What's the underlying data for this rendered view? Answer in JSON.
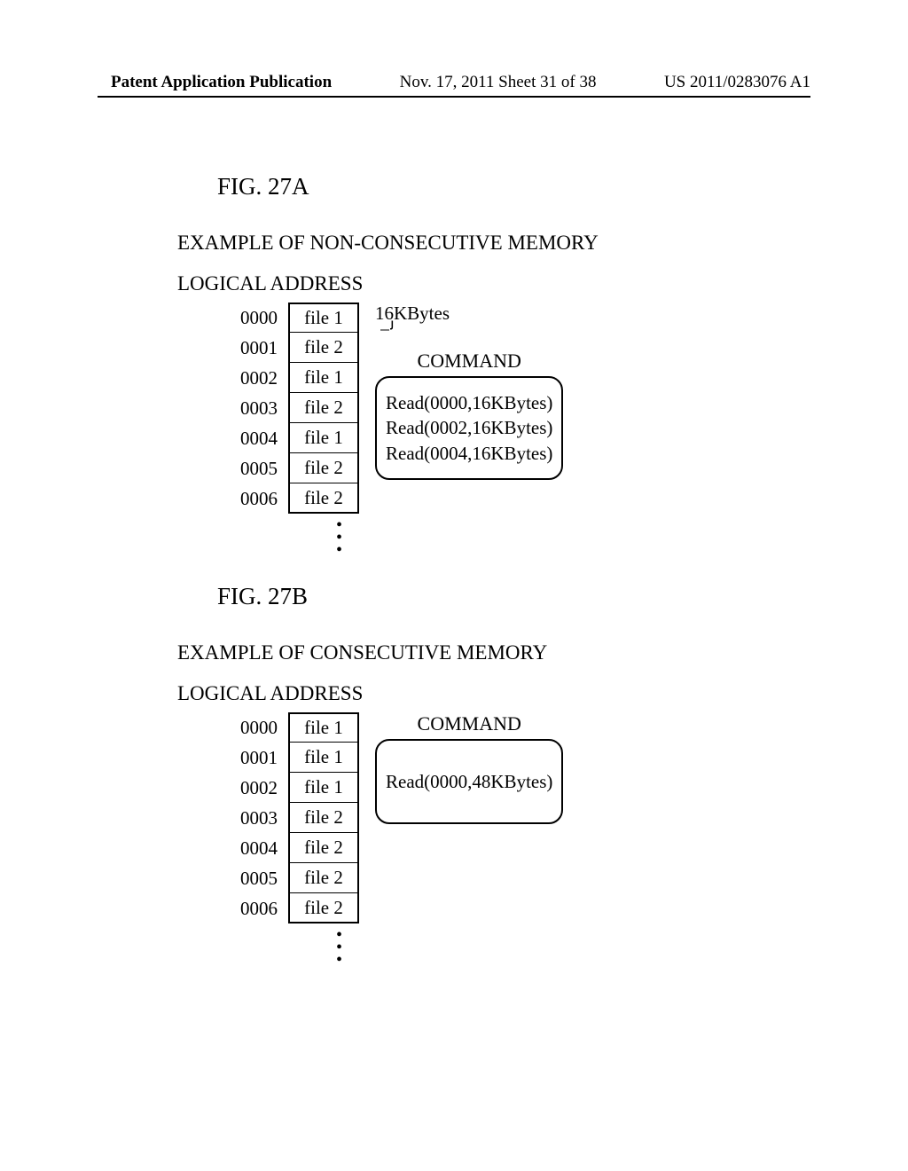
{
  "header": {
    "left": "Patent Application Publication",
    "center": "Nov. 17, 2011  Sheet 31 of 38",
    "right": "US 2011/0283076 A1"
  },
  "figA": {
    "title": "FIG. 27A",
    "caption": "EXAMPLE OF NON-CONSECUTIVE MEMORY",
    "addrLabel": "LOGICAL ADDRESS",
    "sizeLabel": "16KBytes",
    "rows": [
      {
        "addr": "0000",
        "file": "file 1"
      },
      {
        "addr": "0001",
        "file": "file 2"
      },
      {
        "addr": "0002",
        "file": "file 1"
      },
      {
        "addr": "0003",
        "file": "file 2"
      },
      {
        "addr": "0004",
        "file": "file 1"
      },
      {
        "addr": "0005",
        "file": "file 2"
      },
      {
        "addr": "0006",
        "file": "file 2"
      }
    ],
    "cmdLabel": "COMMAND",
    "commands": [
      "Read(0000,16KBytes)",
      "Read(0002,16KBytes)",
      "Read(0004,16KBytes)"
    ]
  },
  "figB": {
    "title": "FIG. 27B",
    "caption": "EXAMPLE OF CONSECUTIVE MEMORY",
    "addrLabel": "LOGICAL ADDRESS",
    "rows": [
      {
        "addr": "0000",
        "file": "file 1"
      },
      {
        "addr": "0001",
        "file": "file 1"
      },
      {
        "addr": "0002",
        "file": "file 1"
      },
      {
        "addr": "0003",
        "file": "file 2"
      },
      {
        "addr": "0004",
        "file": "file 2"
      },
      {
        "addr": "0005",
        "file": "file 2"
      },
      {
        "addr": "0006",
        "file": "file 2"
      }
    ],
    "cmdLabel": "COMMAND",
    "commands": [
      "Read(0000,48KBytes)"
    ]
  }
}
